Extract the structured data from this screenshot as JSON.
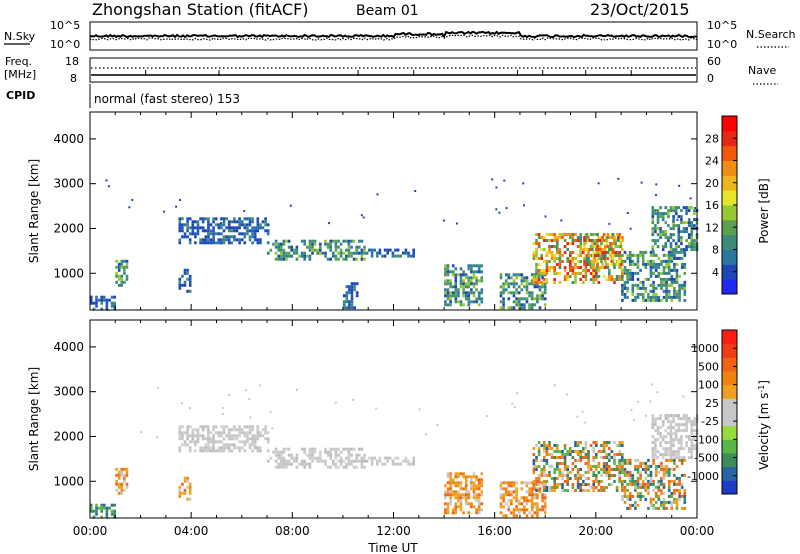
{
  "header": {
    "title": "Zhongshan Station (fitACF)",
    "beam": "Beam 01",
    "date": "23/Oct/2015"
  },
  "strips": {
    "noise": {
      "left_label": "N.Sky",
      "left_ticks": [
        "10^5",
        "10^0"
      ],
      "right_label": "N.Search",
      "right_ticks": [
        "10^5",
        "10^0"
      ]
    },
    "freq": {
      "left_label_line1": "Freq.",
      "left_label_line2": "[MHz]",
      "left_ticks": [
        "18",
        "8"
      ],
      "right_label": "Nave",
      "right_ticks": [
        "60",
        "0"
      ]
    },
    "cpid": {
      "label": "CPID",
      "text": "normal (fast stereo) 153"
    }
  },
  "chart_data": [
    {
      "type": "heatmap",
      "parameter": "power",
      "ylabel": "Slant Range [km]",
      "xlabel": "Time UT",
      "x_ticks": [
        "00:00",
        "04:00",
        "08:00",
        "12:00",
        "16:00",
        "20:00",
        "00:00"
      ],
      "y_ticks": [
        1000,
        2000,
        3000,
        4000
      ],
      "ylim": [
        180,
        4600
      ],
      "xlim_hours": [
        0,
        24
      ],
      "colorbar": {
        "label": "Power [dB]",
        "ticks": [
          "4",
          "8",
          "12",
          "16",
          "20",
          "24",
          "28"
        ],
        "colors": [
          "#1e28f0",
          "#1e46b4",
          "#2878a0",
          "#3c8c78",
          "#5aa050",
          "#96c832",
          "#e6e628",
          "#f0b41e",
          "#f08c14",
          "#f05a0a",
          "#e62814",
          "#ff0000"
        ]
      },
      "echo_regions": [
        {
          "t": [
            0.0,
            1.0
          ],
          "r": [
            200,
            500
          ],
          "level": "low"
        },
        {
          "t": [
            1.0,
            1.5
          ],
          "r": [
            700,
            1300
          ],
          "level": "mid"
        },
        {
          "t": [
            3.5,
            4.0
          ],
          "r": [
            600,
            1100
          ],
          "level": "low"
        },
        {
          "t": [
            3.5,
            7.0
          ],
          "r": [
            1700,
            2250
          ],
          "level": "low"
        },
        {
          "t": [
            7.0,
            11.0
          ],
          "r": [
            1300,
            1750
          ],
          "level": "mid"
        },
        {
          "t": [
            11.0,
            12.8
          ],
          "r": [
            1350,
            1550
          ],
          "level": "low"
        },
        {
          "t": [
            10.0,
            10.6
          ],
          "r": [
            200,
            800
          ],
          "level": "low"
        },
        {
          "t": [
            14.0,
            15.5
          ],
          "r": [
            300,
            1200
          ],
          "level": "mid"
        },
        {
          "t": [
            16.2,
            18.0
          ],
          "r": [
            200,
            1000
          ],
          "level": "mid"
        },
        {
          "t": [
            17.5,
            21.0
          ],
          "r": [
            800,
            1900
          ],
          "level": "high"
        },
        {
          "t": [
            19.5,
            21.0
          ],
          "r": [
            1100,
            1900
          ],
          "level": "high"
        },
        {
          "t": [
            21.0,
            23.5
          ],
          "r": [
            400,
            1500
          ],
          "level": "mid"
        },
        {
          "t": [
            22.2,
            24.0
          ],
          "r": [
            1500,
            2500
          ],
          "level": "mid"
        }
      ]
    },
    {
      "type": "heatmap",
      "parameter": "velocity",
      "ylabel": "Slant Range [km]",
      "xlabel": "Time UT",
      "x_ticks": [
        "00:00",
        "04:00",
        "08:00",
        "12:00",
        "16:00",
        "20:00",
        "00:00"
      ],
      "y_ticks": [
        1000,
        2000,
        3000,
        4000
      ],
      "ylim": [
        180,
        4600
      ],
      "xlim_hours": [
        0,
        24
      ],
      "colorbar": {
        "label": "Velocity [m s^-1]",
        "ticks": [
          "1000",
          "500",
          "100",
          "25",
          "-25",
          "-100",
          "-500",
          "-1000"
        ],
        "colors": [
          "#1e3cc8",
          "#2864a0",
          "#3c8c5a",
          "#5ab446",
          "#96dc3c",
          "#c8c8c8",
          "#c8c8c8",
          "#f0a01e",
          "#f08214",
          "#f06414",
          "#f03c14",
          "#ff1e14"
        ]
      },
      "echo_regions": [
        {
          "t": [
            0.0,
            1.0
          ],
          "r": [
            200,
            500
          ],
          "class": "positive"
        },
        {
          "t": [
            1.0,
            1.5
          ],
          "r": [
            700,
            1300
          ],
          "class": "negative"
        },
        {
          "t": [
            3.5,
            4.0
          ],
          "r": [
            600,
            1100
          ],
          "class": "negative"
        },
        {
          "t": [
            3.5,
            7.0
          ],
          "r": [
            1700,
            2250
          ],
          "class": "near-zero"
        },
        {
          "t": [
            7.0,
            11.0
          ],
          "r": [
            1300,
            1750
          ],
          "class": "near-zero"
        },
        {
          "t": [
            11.0,
            12.8
          ],
          "r": [
            1350,
            1550
          ],
          "class": "near-zero"
        },
        {
          "t": [
            14.0,
            15.5
          ],
          "r": [
            300,
            1200
          ],
          "class": "negative"
        },
        {
          "t": [
            16.2,
            18.0
          ],
          "r": [
            200,
            1000
          ],
          "class": "negative"
        },
        {
          "t": [
            17.5,
            21.0
          ],
          "r": [
            800,
            1900
          ],
          "class": "mixed"
        },
        {
          "t": [
            21.0,
            23.5
          ],
          "r": [
            400,
            1500
          ],
          "class": "mixed"
        },
        {
          "t": [
            22.2,
            24.0
          ],
          "r": [
            1500,
            2500
          ],
          "class": "near-zero"
        }
      ]
    }
  ]
}
